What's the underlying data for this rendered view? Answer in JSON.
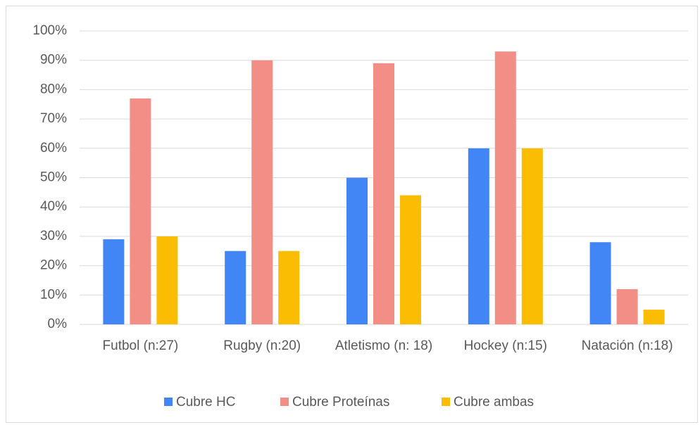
{
  "chart_data": {
    "type": "bar",
    "categories": [
      "Futbol (n:27)",
      "Rugby (n:20)",
      "Atletismo (n: 18)",
      "Hockey (n:15)",
      "Natación (n:18)"
    ],
    "series": [
      {
        "name": "Cubre HC",
        "color": "#4285f4",
        "values": [
          29,
          25,
          50,
          60,
          28
        ]
      },
      {
        "name": "Cubre Proteínas",
        "color": "#f28e86",
        "values": [
          77,
          90,
          89,
          93,
          12
        ]
      },
      {
        "name": "Cubre ambas",
        "color": "#fbbc04",
        "values": [
          30,
          25,
          44,
          60,
          5
        ]
      }
    ],
    "ylim": [
      0,
      100
    ],
    "yticks": [
      {
        "value": 0,
        "label": "0%"
      },
      {
        "value": 10,
        "label": "10%"
      },
      {
        "value": 20,
        "label": "20%"
      },
      {
        "value": 30,
        "label": "30%"
      },
      {
        "value": 40,
        "label": "40%"
      },
      {
        "value": 50,
        "label": "50%"
      },
      {
        "value": 60,
        "label": "60%"
      },
      {
        "value": 70,
        "label": "70%"
      },
      {
        "value": 80,
        "label": "80%"
      },
      {
        "value": 90,
        "label": "90%"
      },
      {
        "value": 100,
        "label": "100%"
      }
    ],
    "grid": true,
    "legend": "bottom"
  }
}
